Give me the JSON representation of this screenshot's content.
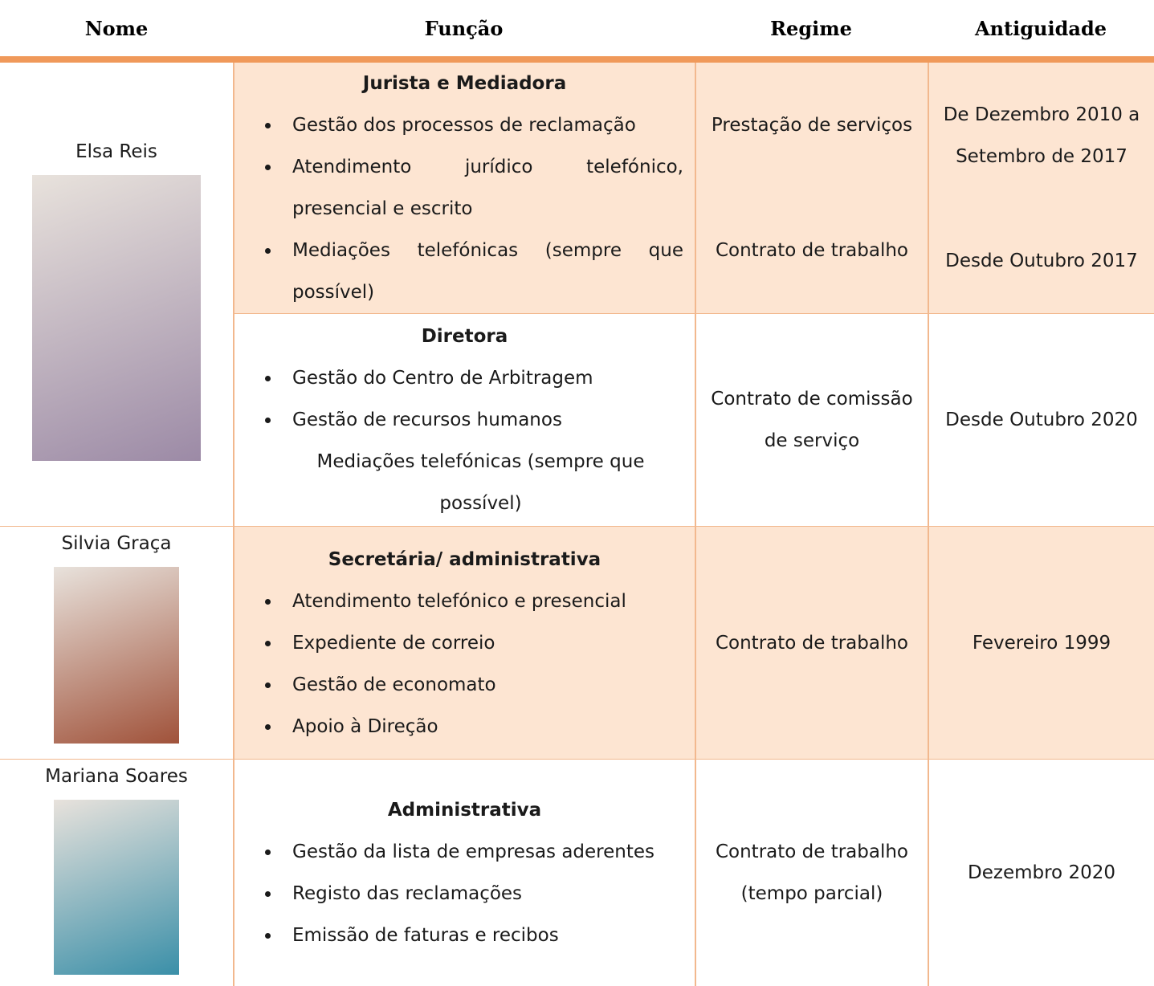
{
  "header": {
    "columns": [
      "Nome",
      "Função",
      "Regime",
      "Antiguidade"
    ]
  },
  "rows": [
    {
      "name": "Elsa Reis",
      "roles": [
        {
          "title": "Jurista e Mediadora",
          "items": [
            "Gestão dos processos de reclamação",
            "Atendimento jurídico telefónico, presencial e escrito",
            "Mediações telefónicas (sempre que possível)"
          ],
          "regime": [
            "Prestação de serviços",
            "Contrato de trabalho"
          ],
          "antiguidade": [
            "De Dezembro 2010 a Setembro de 2017",
            "Desde Outubro 2017"
          ]
        },
        {
          "title": "Diretora",
          "items": [
            "Gestão do Centro de Arbitragem",
            "Gestão de recursos humanos"
          ],
          "note": "Mediações telefónicas (sempre que possível)",
          "regime": [
            "Contrato de comissão de serviço"
          ],
          "antiguidade": [
            "Desde Outubro 2020"
          ]
        }
      ]
    },
    {
      "name": "Silvia Graça",
      "roles": [
        {
          "title": "Secretária/ administrativa",
          "items": [
            "Atendimento telefónico e presencial",
            "Expediente de correio",
            "Gestão de economato",
            "Apoio à Direção"
          ],
          "regime": [
            "Contrato de trabalho"
          ],
          "antiguidade": [
            "Fevereiro 1999"
          ]
        }
      ]
    },
    {
      "name": "Mariana Soares",
      "roles": [
        {
          "title": "Administrativa",
          "items": [
            "Gestão da lista de empresas aderentes",
            "Registo das reclamações",
            "Emissão de faturas e recibos"
          ],
          "regime": [
            "Contrato de trabalho (tempo parcial)"
          ],
          "antiguidade": [
            "Dezembro 2020"
          ]
        }
      ]
    }
  ]
}
